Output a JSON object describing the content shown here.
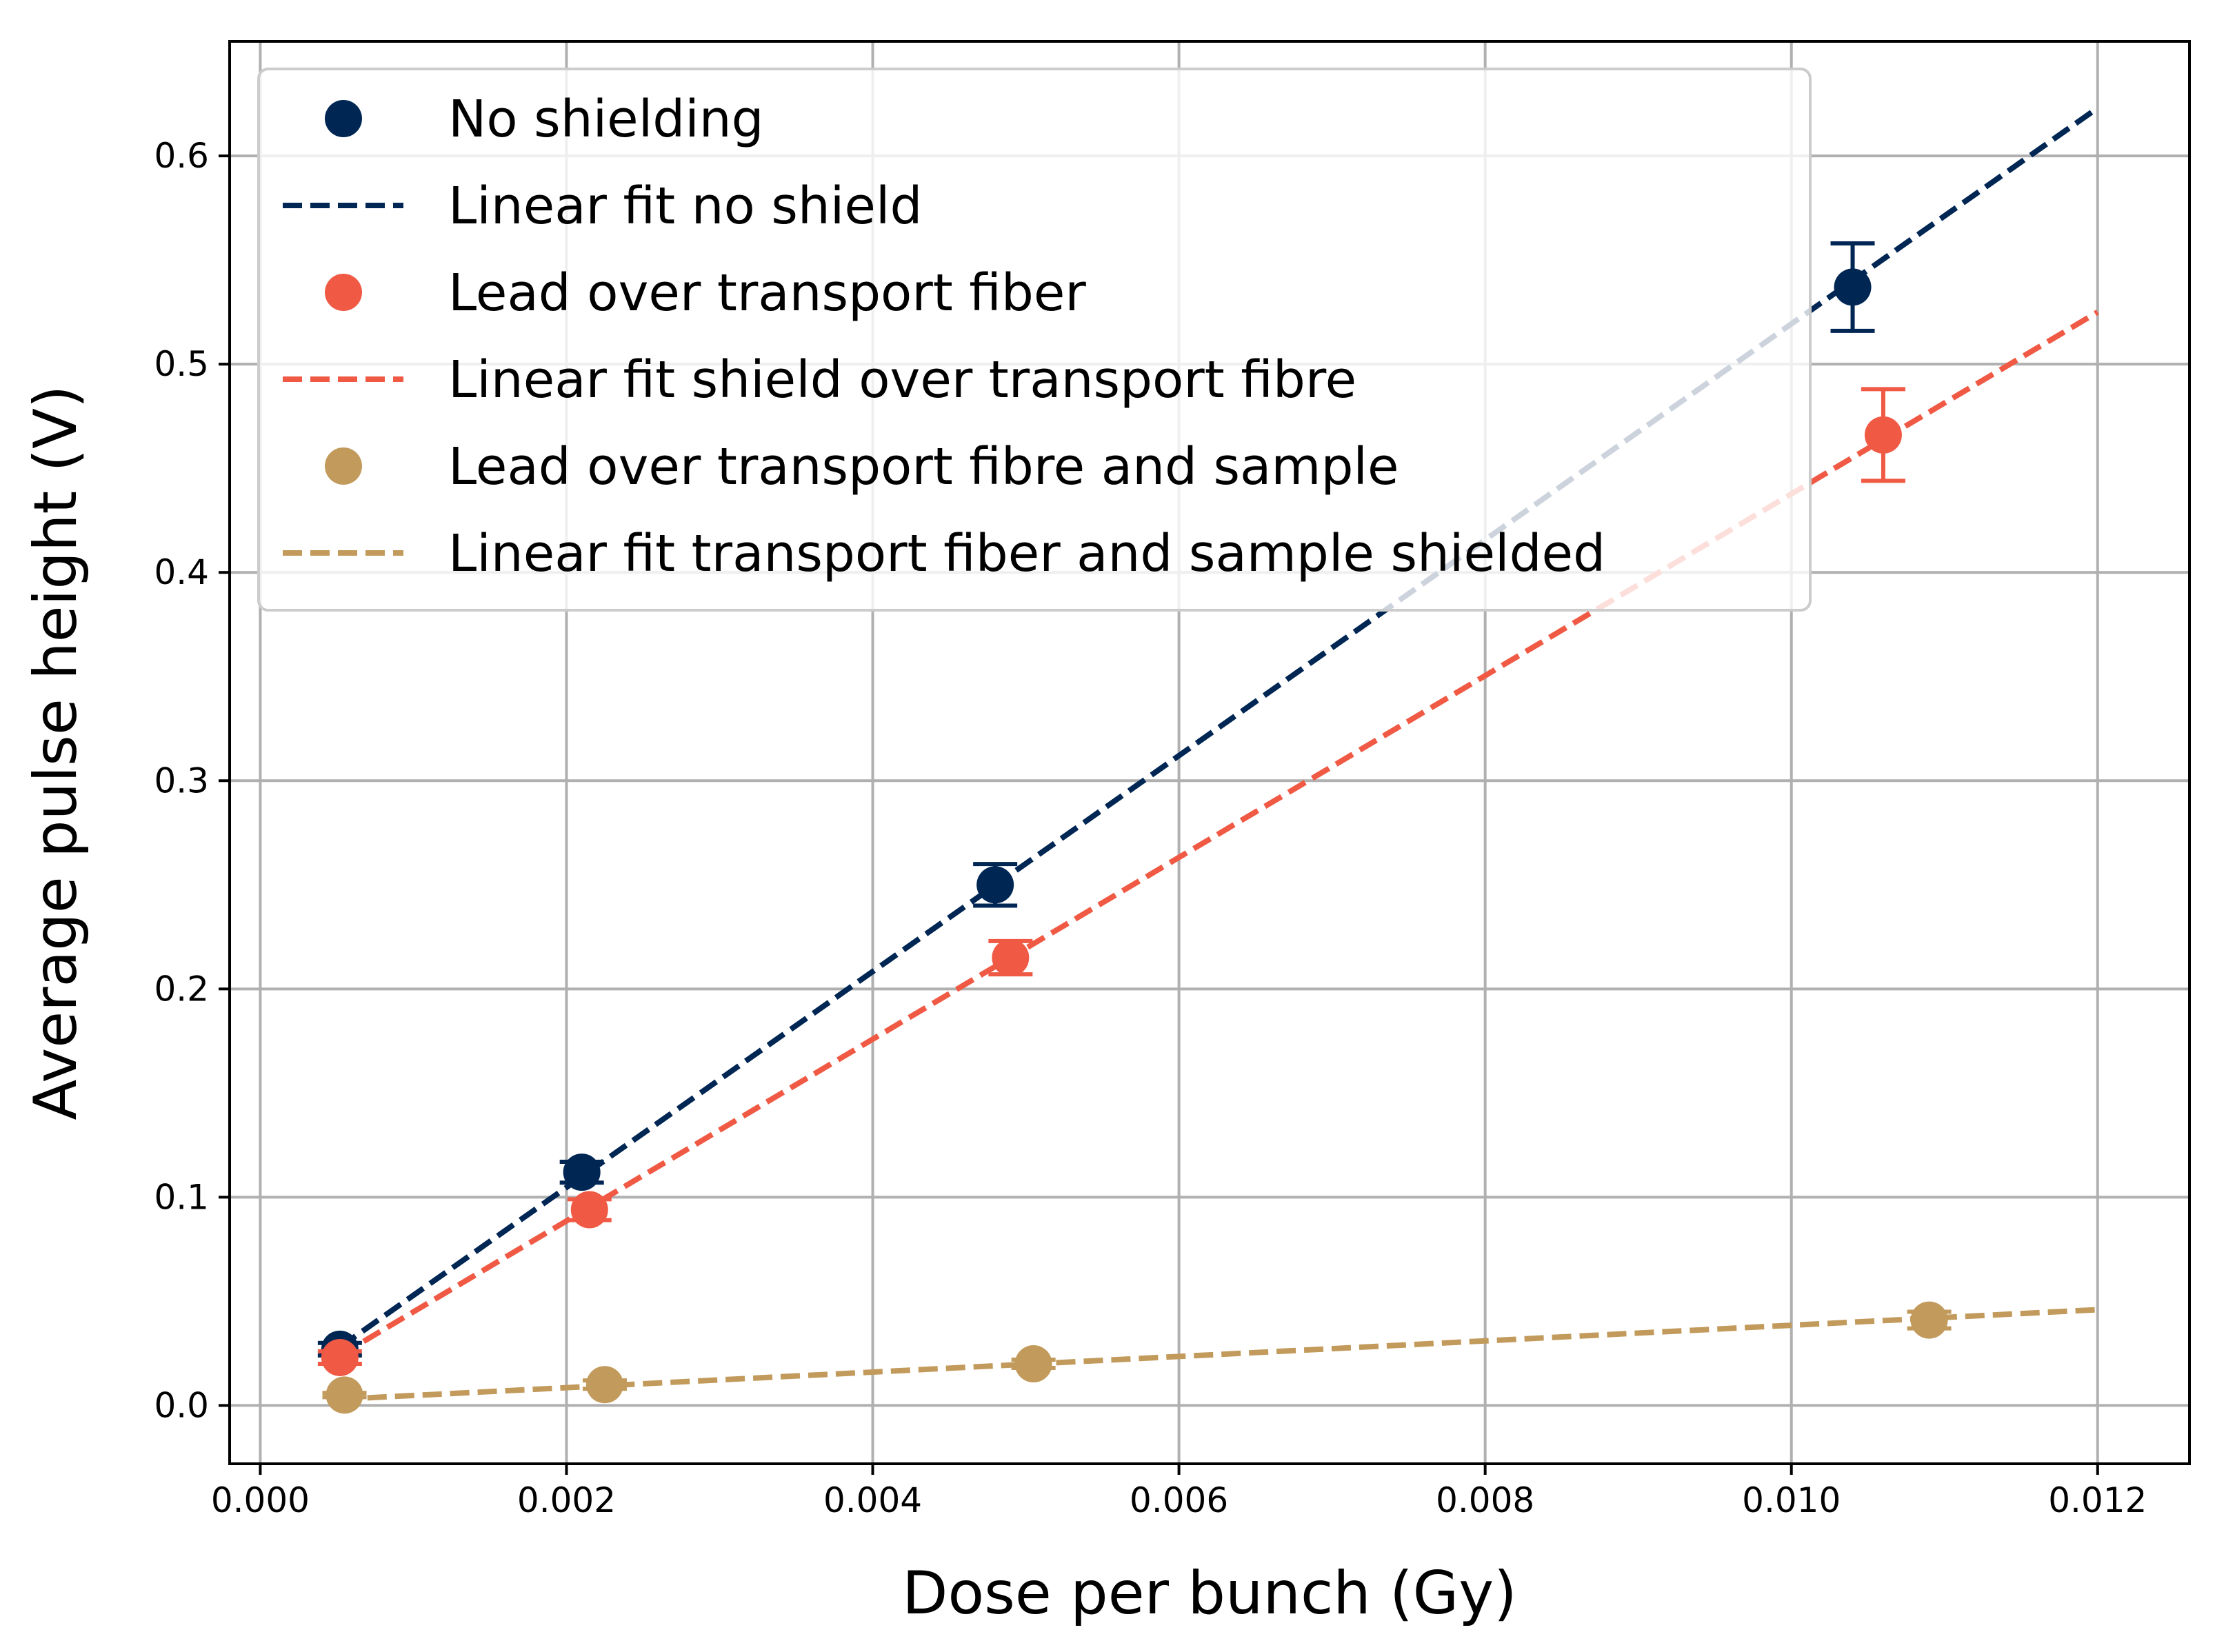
{
  "chart_data": {
    "type": "scatter",
    "title": "",
    "xlabel": "Dose per bunch (Gy)",
    "ylabel": "Average pulse height (V)",
    "xlim": [
      -0.0002,
      0.0126
    ],
    "ylim": [
      -0.028,
      0.655
    ],
    "xticks": [
      0.0,
      0.002,
      0.004,
      0.006,
      0.008,
      0.01,
      0.012
    ],
    "xtick_labels": [
      "0.000",
      "0.002",
      "0.004",
      "0.006",
      "0.008",
      "0.010",
      "0.012"
    ],
    "yticks": [
      0.0,
      0.1,
      0.2,
      0.3,
      0.4,
      0.5,
      0.6
    ],
    "ytick_labels": [
      "0.0",
      "0.1",
      "0.2",
      "0.3",
      "0.4",
      "0.5",
      "0.6"
    ],
    "grid": true,
    "legend_position": "top-left",
    "series": [
      {
        "name": "No shielding",
        "kind": "points",
        "color": "#002654",
        "x": [
          0.00052,
          0.0021,
          0.0048,
          0.0104
        ],
        "y": [
          0.027,
          0.112,
          0.25,
          0.537
        ],
        "yerr": [
          0.003,
          0.005,
          0.01,
          0.021
        ]
      },
      {
        "name": "Linear fit no shield",
        "kind": "line",
        "color": "#002654",
        "x": [
          0.00052,
          0.012
        ],
        "y": [
          0.028,
          0.623
        ]
      },
      {
        "name": "Lead over transport fiber",
        "kind": "points",
        "color": "#f05a45",
        "x": [
          0.00052,
          0.00215,
          0.0049,
          0.0106
        ],
        "y": [
          0.023,
          0.094,
          0.215,
          0.466
        ],
        "yerr": [
          0.003,
          0.005,
          0.008,
          0.022
        ]
      },
      {
        "name": "Linear fit shield over transport fibre",
        "kind": "line",
        "color": "#f05a45",
        "x": [
          0.00052,
          0.012
        ],
        "y": [
          0.024,
          0.525
        ]
      },
      {
        "name": "Lead over transport fibre and sample",
        "kind": "points",
        "color": "#c29a5b",
        "x": [
          0.00055,
          0.00225,
          0.00505,
          0.0109
        ],
        "y": [
          0.005,
          0.01,
          0.02,
          0.041
        ],
        "yerr": [
          0.001,
          0.002,
          0.002,
          0.004
        ]
      },
      {
        "name": "Linear fit transport fiber and sample shielded",
        "kind": "line",
        "color": "#c29a5b",
        "x": [
          0.00052,
          0.012
        ],
        "y": [
          0.003,
          0.046
        ]
      }
    ]
  }
}
